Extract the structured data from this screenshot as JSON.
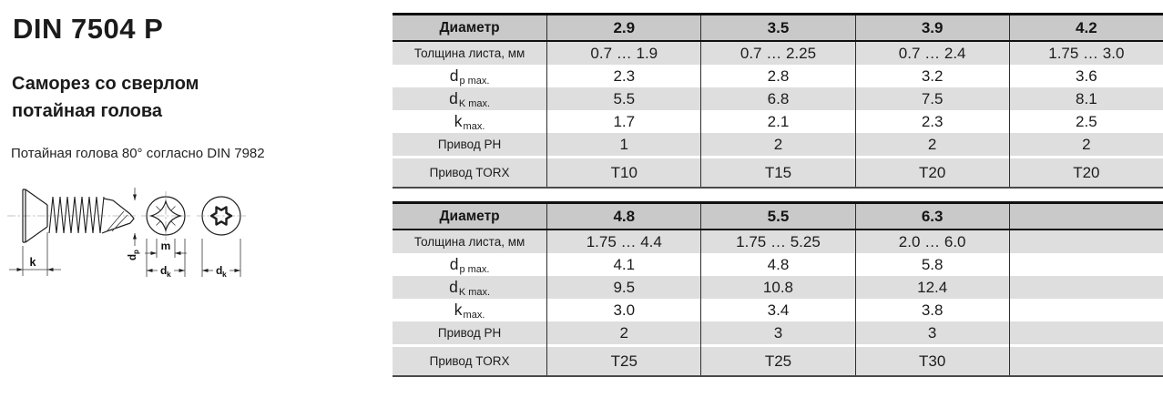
{
  "header": {
    "title": "DIN 7504 P",
    "subtitle_line1": "Саморез со сверлом",
    "subtitle_line2": "потайная голова",
    "note": "Потайная голова 80° согласно DIN 7982"
  },
  "drawing": {
    "k_label": "k",
    "dp_main": "d",
    "dp_sub": "p",
    "m_label": "m",
    "dk_ph_main": "d",
    "dk_ph_sub": "k",
    "dk_torx_main": "d",
    "dk_torx_sub": "k"
  },
  "tables": [
    {
      "header": {
        "corner": "Диаметр",
        "cols": [
          "2.9",
          "3.5",
          "3.9",
          "4.2"
        ]
      },
      "rows": [
        {
          "label": "Толщина листа, мм",
          "sub": "",
          "values": [
            "0.7 … 1.9",
            "0.7 … 2.25",
            "0.7 … 2.4",
            "1.75 … 3.0"
          ],
          "shaded": true,
          "tall": false,
          "gap_before": false
        },
        {
          "label": "d",
          "sub": "p max.",
          "values": [
            "2.3",
            "2.8",
            "3.2",
            "3.6"
          ],
          "shaded": false,
          "tall": false,
          "gap_before": false
        },
        {
          "label": "d",
          "sub": "K max.",
          "values": [
            "5.5",
            "6.8",
            "7.5",
            "8.1"
          ],
          "shaded": true,
          "tall": false,
          "gap_before": false
        },
        {
          "label": "k",
          "sub": "max.",
          "values": [
            "1.7",
            "2.1",
            "2.3",
            "2.5"
          ],
          "shaded": false,
          "tall": false,
          "gap_before": false
        },
        {
          "label": "Привод PH",
          "sub": "",
          "values": [
            "1",
            "2",
            "2",
            "2"
          ],
          "shaded": true,
          "tall": false,
          "gap_before": false
        },
        {
          "label": "Привод TORX",
          "sub": "",
          "values": [
            "T10",
            "T15",
            "T20",
            "T20"
          ],
          "shaded": true,
          "tall": true,
          "gap_before": true
        }
      ]
    },
    {
      "header": {
        "corner": "Диаметр",
        "cols": [
          "4.8",
          "5.5",
          "6.3",
          ""
        ]
      },
      "rows": [
        {
          "label": "Толщина листа, мм",
          "sub": "",
          "values": [
            "1.75 … 4.4",
            "1.75 … 5.25",
            "2.0 … 6.0",
            ""
          ],
          "shaded": true,
          "tall": false,
          "gap_before": false
        },
        {
          "label": "d",
          "sub": "p max.",
          "values": [
            "4.1",
            "4.8",
            "5.8",
            ""
          ],
          "shaded": false,
          "tall": false,
          "gap_before": false
        },
        {
          "label": "d",
          "sub": "K max.",
          "values": [
            "9.5",
            "10.8",
            "12.4",
            ""
          ],
          "shaded": true,
          "tall": false,
          "gap_before": false
        },
        {
          "label": "k",
          "sub": "max.",
          "values": [
            "3.0",
            "3.4",
            "3.8",
            ""
          ],
          "shaded": false,
          "tall": false,
          "gap_before": false
        },
        {
          "label": "Привод PH",
          "sub": "",
          "values": [
            "2",
            "3",
            "3",
            ""
          ],
          "shaded": true,
          "tall": false,
          "gap_before": false
        },
        {
          "label": "Привод TORX",
          "sub": "",
          "values": [
            "T25",
            "T25",
            "T30",
            ""
          ],
          "shaded": true,
          "tall": true,
          "gap_before": true
        }
      ]
    }
  ]
}
